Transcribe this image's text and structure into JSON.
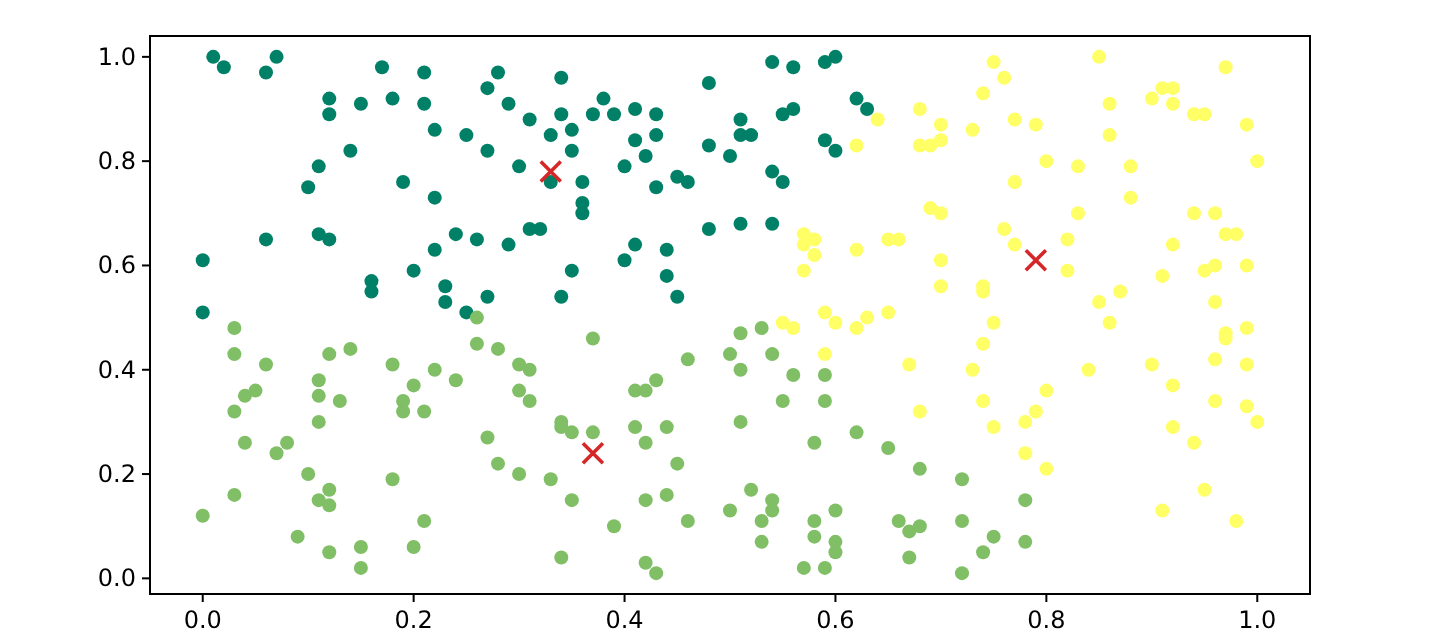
{
  "chart_data": {
    "type": "scatter",
    "marker": "circle",
    "xlim": [
      -0.05,
      1.05
    ],
    "ylim": [
      -0.03,
      1.04
    ],
    "xticks": [
      {
        "value": 0,
        "label": "0.0"
      },
      0.2,
      0.4,
      0.6,
      0.8,
      {
        "value": 1,
        "label": "1.0"
      }
    ],
    "yticks": [
      {
        "value": 0,
        "label": "0.0"
      },
      0.2,
      0.4,
      0.6,
      0.8,
      {
        "value": 1,
        "label": "1.0"
      }
    ],
    "series": [
      {
        "color": "#008066",
        "x": [
          0.01,
          0.02,
          0.06,
          0.07,
          0.17,
          0.21,
          0.28,
          0.34,
          0.27,
          0.29,
          0.18,
          0.21,
          0.15,
          0.12,
          0.12,
          0.31,
          0.34,
          0.22,
          0.25,
          0.33,
          0.27,
          0.35,
          0.14,
          0.11,
          0.3,
          0.33,
          0.1,
          0.19,
          0.22,
          0.06,
          0.11,
          0.12,
          0.24,
          0.26,
          0.29,
          0.31,
          0.32,
          0.22,
          0.0,
          0.2,
          0.16,
          0.16,
          0.23,
          0.23,
          0.25,
          0.27,
          0.34,
          0.0,
          0.54,
          0.56,
          0.59,
          0.6,
          0.48,
          0.38,
          0.37,
          0.39,
          0.41,
          0.43,
          0.35,
          0.43,
          0.41,
          0.42,
          0.4,
          0.48,
          0.5,
          0.51,
          0.51,
          0.52,
          0.55,
          0.56,
          0.62,
          0.63,
          0.59,
          0.6,
          0.54,
          0.55,
          0.45,
          0.46,
          0.43,
          0.36,
          0.36,
          0.36,
          0.48,
          0.51,
          0.54,
          0.41,
          0.44,
          0.4,
          0.44,
          0.35,
          0.45
        ],
        "values": [
          1.0,
          0.98,
          0.97,
          1.0,
          0.98,
          0.97,
          0.97,
          0.96,
          0.94,
          0.91,
          0.92,
          0.91,
          0.91,
          0.92,
          0.89,
          0.88,
          0.89,
          0.86,
          0.85,
          0.85,
          0.82,
          0.82,
          0.82,
          0.79,
          0.79,
          0.76,
          0.75,
          0.76,
          0.73,
          0.65,
          0.66,
          0.65,
          0.66,
          0.65,
          0.64,
          0.67,
          0.67,
          0.63,
          0.61,
          0.59,
          0.57,
          0.55,
          0.56,
          0.53,
          0.51,
          0.54,
          0.54,
          0.51,
          0.99,
          0.98,
          0.99,
          1.0,
          0.95,
          0.92,
          0.89,
          0.89,
          0.9,
          0.89,
          0.86,
          0.85,
          0.84,
          0.81,
          0.79,
          0.83,
          0.81,
          0.88,
          0.85,
          0.85,
          0.89,
          0.9,
          0.92,
          0.9,
          0.84,
          0.82,
          0.78,
          0.76,
          0.77,
          0.76,
          0.75,
          0.76,
          0.72,
          0.7,
          0.67,
          0.68,
          0.68,
          0.64,
          0.63,
          0.61,
          0.58,
          0.59,
          0.54
        ]
      },
      {
        "color": "#80bf66",
        "x": [
          0.03,
          0.03,
          0.06,
          0.04,
          0.05,
          0.03,
          0.04,
          0.07,
          0.08,
          0.03,
          0.0,
          0.12,
          0.14,
          0.11,
          0.11,
          0.13,
          0.11,
          0.1,
          0.12,
          0.11,
          0.12,
          0.09,
          0.12,
          0.15,
          0.15,
          0.18,
          0.18,
          0.2,
          0.22,
          0.24,
          0.19,
          0.19,
          0.21,
          0.21,
          0.2,
          0.26,
          0.26,
          0.28,
          0.3,
          0.31,
          0.3,
          0.31,
          0.27,
          0.28,
          0.3,
          0.33,
          0.35,
          0.34,
          0.34,
          0.37,
          0.34,
          0.35,
          0.37,
          0.41,
          0.44,
          0.42,
          0.45,
          0.42,
          0.44,
          0.39,
          0.46,
          0.42,
          0.43,
          0.41,
          0.43,
          0.42,
          0.46,
          0.51,
          0.53,
          0.5,
          0.51,
          0.54,
          0.56,
          0.59,
          0.55,
          0.59,
          0.51,
          0.58,
          0.62,
          0.65,
          0.68,
          0.52,
          0.5,
          0.54,
          0.54,
          0.53,
          0.58,
          0.6,
          0.58,
          0.6,
          0.6,
          0.53,
          0.57,
          0.59,
          0.66,
          0.68,
          0.67,
          0.67,
          0.72,
          0.72,
          0.75,
          0.74,
          0.78,
          0.78,
          0.72
        ],
        "values": [
          0.48,
          0.43,
          0.41,
          0.35,
          0.36,
          0.32,
          0.26,
          0.24,
          0.26,
          0.16,
          0.12,
          0.43,
          0.44,
          0.38,
          0.35,
          0.34,
          0.3,
          0.2,
          0.17,
          0.15,
          0.14,
          0.08,
          0.05,
          0.06,
          0.02,
          0.19,
          0.41,
          0.37,
          0.4,
          0.38,
          0.34,
          0.32,
          0.32,
          0.11,
          0.06,
          0.5,
          0.45,
          0.44,
          0.41,
          0.4,
          0.36,
          0.34,
          0.27,
          0.22,
          0.2,
          0.19,
          0.15,
          0.3,
          0.04,
          0.46,
          0.29,
          0.28,
          0.28,
          0.29,
          0.29,
          0.26,
          0.22,
          0.15,
          0.16,
          0.1,
          0.11,
          0.03,
          0.01,
          0.36,
          0.38,
          0.36,
          0.42,
          0.47,
          0.48,
          0.43,
          0.4,
          0.43,
          0.39,
          0.39,
          0.34,
          0.34,
          0.3,
          0.26,
          0.28,
          0.25,
          0.21,
          0.17,
          0.13,
          0.15,
          0.13,
          0.11,
          0.11,
          0.13,
          0.08,
          0.07,
          0.05,
          0.07,
          0.02,
          0.02,
          0.11,
          0.1,
          0.09,
          0.04,
          0.19,
          0.11,
          0.08,
          0.05,
          0.15,
          0.07,
          0.01
        ]
      },
      {
        "color": "#ffff66",
        "x": [
          0.64,
          0.68,
          0.7,
          0.7,
          0.62,
          0.68,
          0.69,
          0.69,
          0.7,
          0.57,
          0.57,
          0.58,
          0.58,
          0.57,
          0.62,
          0.65,
          0.66,
          0.7,
          0.7,
          0.59,
          0.55,
          0.56,
          0.6,
          0.62,
          0.63,
          0.65,
          0.59,
          0.67,
          0.68,
          0.75,
          0.76,
          0.74,
          0.85,
          0.73,
          0.77,
          0.79,
          0.86,
          0.86,
          0.9,
          0.91,
          0.92,
          0.92,
          0.94,
          0.95,
          0.97,
          0.99,
          1.0,
          0.8,
          0.83,
          0.88,
          0.88,
          0.77,
          0.83,
          0.82,
          0.76,
          0.77,
          0.82,
          0.74,
          0.74,
          0.75,
          0.85,
          0.86,
          0.87,
          0.91,
          0.92,
          0.94,
          0.96,
          0.97,
          0.98,
          0.95,
          0.96,
          0.99,
          0.96,
          0.97,
          0.99,
          0.74,
          0.73,
          0.74,
          0.75,
          0.8,
          0.79,
          0.78,
          0.78,
          0.8,
          0.84,
          0.9,
          0.92,
          0.92,
          0.94,
          0.95,
          0.91,
          0.98,
          0.96,
          0.99,
          0.96,
          0.99,
          1.0,
          0.97
        ],
        "values": [
          0.88,
          0.9,
          0.87,
          0.84,
          0.83,
          0.83,
          0.83,
          0.71,
          0.7,
          0.66,
          0.64,
          0.65,
          0.62,
          0.59,
          0.63,
          0.65,
          0.65,
          0.61,
          0.56,
          0.51,
          0.49,
          0.48,
          0.49,
          0.48,
          0.5,
          0.51,
          0.43,
          0.41,
          0.32,
          0.99,
          0.96,
          0.93,
          1.0,
          0.86,
          0.88,
          0.87,
          0.91,
          0.85,
          0.92,
          0.94,
          0.94,
          0.91,
          0.89,
          0.89,
          0.98,
          0.87,
          0.8,
          0.8,
          0.79,
          0.79,
          0.73,
          0.76,
          0.7,
          0.65,
          0.67,
          0.64,
          0.59,
          0.56,
          0.55,
          0.49,
          0.53,
          0.49,
          0.55,
          0.58,
          0.64,
          0.7,
          0.7,
          0.66,
          0.66,
          0.59,
          0.6,
          0.6,
          0.53,
          0.47,
          0.48,
          0.45,
          0.4,
          0.34,
          0.29,
          0.36,
          0.32,
          0.3,
          0.24,
          0.21,
          0.4,
          0.41,
          0.37,
          0.29,
          0.26,
          0.17,
          0.13,
          0.11,
          0.42,
          0.41,
          0.34,
          0.33,
          0.3,
          0.46
        ]
      },
      {
        "color": "#d62728",
        "marker": "cross",
        "x": [
          0.33,
          0.37,
          0.79
        ],
        "values": [
          0.78,
          0.24,
          0.61
        ]
      }
    ]
  }
}
